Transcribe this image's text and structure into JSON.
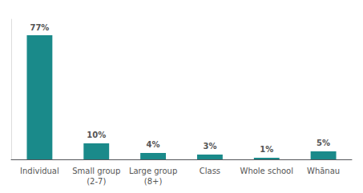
{
  "chart_data": {
    "type": "bar",
    "categories": [
      "Individual",
      "Small group\n(2-7)",
      "Large group\n(8+)",
      "Class",
      "Whole school",
      "Whānau"
    ],
    "values": [
      77,
      10,
      4,
      3,
      1,
      5
    ],
    "value_labels": [
      "77%",
      "10%",
      "4%",
      "3%",
      "1%",
      "5%"
    ],
    "color": "#1a8a8a",
    "ylim": [
      0,
      87
    ],
    "grid": false,
    "data_labels": true,
    "tick_labels": "x"
  }
}
